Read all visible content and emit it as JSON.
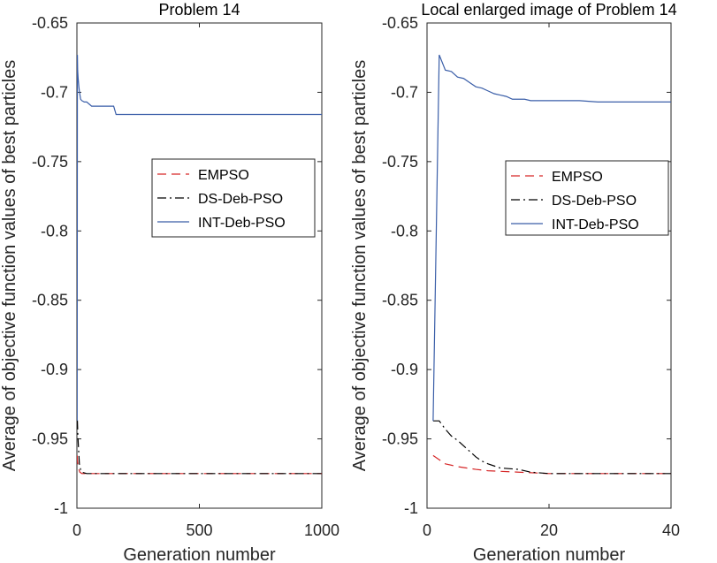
{
  "chart_data": [
    {
      "type": "line",
      "title": "Problem 14",
      "xlabel": "Generation number",
      "ylabel": "Average of objective function values of best particles",
      "xlim": [
        0,
        1000
      ],
      "ylim": [
        -1,
        -0.65
      ],
      "xticks": [
        "0",
        "500",
        "1000"
      ],
      "yticks": [
        "-0.65",
        "-0.7",
        "-0.75",
        "-0.8",
        "-0.85",
        "-0.9",
        "-0.95",
        "-1"
      ],
      "legend_position": "center-right",
      "series": [
        {
          "name": "EMPSO",
          "color": "#d62728",
          "dash": "dashed",
          "x": [
            1,
            3,
            5,
            8,
            12,
            20,
            40,
            100,
            200,
            500,
            1000
          ],
          "y": [
            -0.962,
            -0.967,
            -0.97,
            -0.972,
            -0.974,
            -0.975,
            -0.975,
            -0.975,
            -0.975,
            -0.975,
            -0.975
          ]
        },
        {
          "name": "DS-Deb-PSO",
          "color": "#000000",
          "dash": "dashdot",
          "x": [
            1,
            2,
            4,
            6,
            10,
            15,
            20,
            40,
            100,
            200,
            500,
            1000
          ],
          "y": [
            -0.937,
            -0.937,
            -0.948,
            -0.955,
            -0.968,
            -0.972,
            -0.974,
            -0.975,
            -0.975,
            -0.975,
            -0.975,
            -0.975
          ]
        },
        {
          "name": "INT-Deb-PSO",
          "color": "#3a5ea8",
          "dash": "solid",
          "x": [
            1,
            2,
            3,
            5,
            8,
            10,
            15,
            20,
            30,
            40,
            60,
            100,
            150,
            160,
            200,
            500,
            1000
          ],
          "y": [
            -0.937,
            -0.673,
            -0.684,
            -0.69,
            -0.696,
            -0.699,
            -0.705,
            -0.706,
            -0.707,
            -0.707,
            -0.71,
            -0.71,
            -0.71,
            -0.716,
            -0.716,
            -0.716,
            -0.716
          ]
        }
      ]
    },
    {
      "type": "line",
      "title": "Local enlarged image of Problem 14",
      "xlabel": "Generation number",
      "ylabel": "Average of objective function values of best particles",
      "xlim": [
        0,
        40
      ],
      "ylim": [
        -1,
        -0.65
      ],
      "xticks": [
        "0",
        "20",
        "40"
      ],
      "yticks": [
        "-0.65",
        "-0.7",
        "-0.75",
        "-0.8",
        "-0.85",
        "-0.9",
        "-0.95",
        "-1"
      ],
      "legend_position": "center-right",
      "series": [
        {
          "name": "EMPSO",
          "color": "#d62728",
          "dash": "dashed",
          "x": [
            1,
            2,
            3,
            5,
            8,
            10,
            15,
            20,
            30,
            40
          ],
          "y": [
            -0.962,
            -0.965,
            -0.968,
            -0.97,
            -0.972,
            -0.973,
            -0.974,
            -0.975,
            -0.975,
            -0.975
          ]
        },
        {
          "name": "DS-Deb-PSO",
          "color": "#000000",
          "dash": "dashdot",
          "x": [
            1,
            2,
            3,
            4,
            5,
            6,
            7,
            8,
            9,
            10,
            12,
            15,
            17,
            20,
            25,
            30,
            40
          ],
          "y": [
            -0.937,
            -0.937,
            -0.943,
            -0.948,
            -0.951,
            -0.955,
            -0.959,
            -0.963,
            -0.966,
            -0.968,
            -0.971,
            -0.972,
            -0.974,
            -0.975,
            -0.975,
            -0.975,
            -0.975
          ]
        },
        {
          "name": "INT-Deb-PSO",
          "color": "#3a5ea8",
          "dash": "solid",
          "x": [
            1,
            2,
            3,
            4,
            5,
            6,
            7,
            8,
            9,
            10,
            11,
            12,
            13,
            14,
            15,
            16,
            17,
            18,
            19,
            20,
            25,
            28,
            30,
            35,
            40
          ],
          "y": [
            -0.937,
            -0.673,
            -0.684,
            -0.685,
            -0.689,
            -0.69,
            -0.693,
            -0.696,
            -0.697,
            -0.699,
            -0.701,
            -0.702,
            -0.703,
            -0.705,
            -0.705,
            -0.705,
            -0.706,
            -0.706,
            -0.706,
            -0.706,
            -0.706,
            -0.707,
            -0.707,
            -0.707,
            -0.707
          ]
        }
      ]
    }
  ]
}
